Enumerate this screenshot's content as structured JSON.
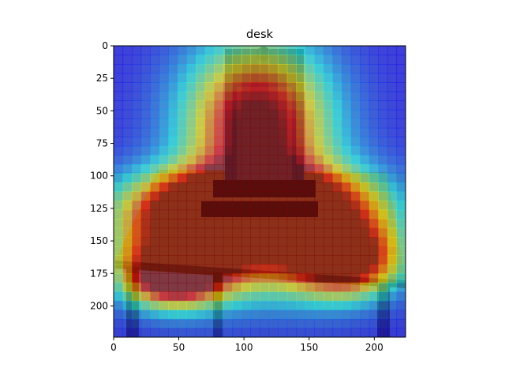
{
  "chart_data": {
    "type": "heatmap",
    "title": "desk",
    "xlabel": "",
    "ylabel": "",
    "xlim": [
      0,
      224
    ],
    "ylim": [
      224,
      0
    ],
    "y_axis_inverted": true,
    "x_ticks": [
      0,
      50,
      100,
      150,
      200
    ],
    "y_ticks": [
      0,
      25,
      50,
      75,
      100,
      125,
      150,
      175,
      200
    ],
    "x_tick_labels": [
      "0",
      "50",
      "100",
      "150",
      "200"
    ],
    "y_tick_labels": [
      "0",
      "25",
      "50",
      "75",
      "100",
      "125",
      "150",
      "175",
      "200"
    ],
    "grid": false,
    "colormap": "jet",
    "overlay": "activation heatmap over photo of a desk with chair",
    "heat_hotspots": [
      {
        "x": 110,
        "y": 60,
        "sigma_x": 38,
        "sigma_y": 42,
        "intensity": 0.95
      },
      {
        "x": 60,
        "y": 150,
        "sigma_x": 40,
        "sigma_y": 28,
        "intensity": 0.95
      },
      {
        "x": 150,
        "y": 145,
        "sigma_x": 42,
        "sigma_y": 30,
        "intensity": 0.9
      },
      {
        "x": 100,
        "y": 120,
        "sigma_x": 55,
        "sigma_y": 18,
        "intensity": 0.85
      },
      {
        "x": 45,
        "y": 178,
        "sigma_x": 25,
        "sigma_y": 15,
        "intensity": 0.8
      },
      {
        "x": 180,
        "y": 165,
        "sigma_x": 25,
        "sigma_y": 18,
        "intensity": 0.7
      }
    ]
  }
}
